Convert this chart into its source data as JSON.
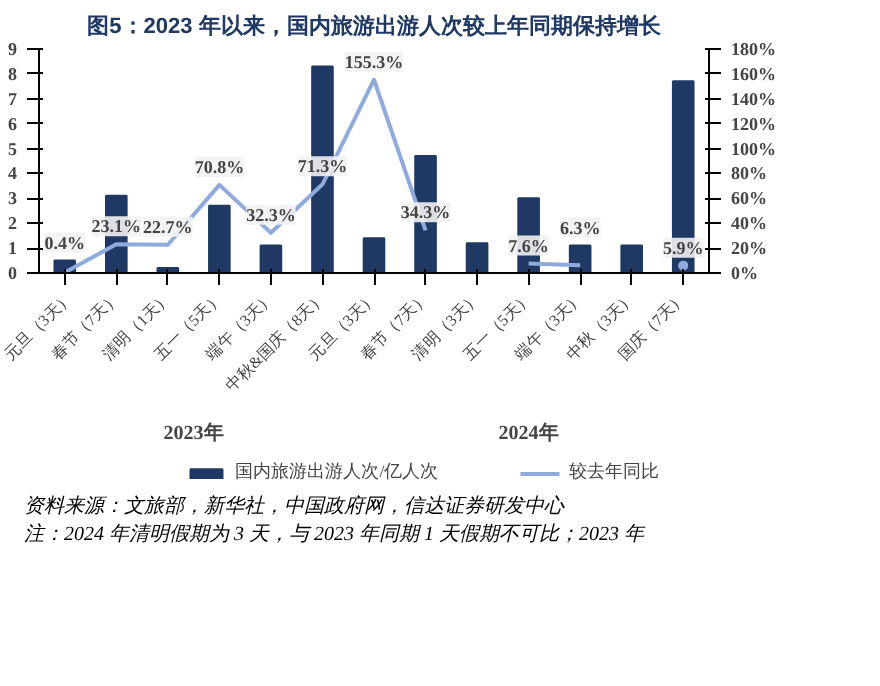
{
  "chart_data": {
    "type": "bar",
    "title": "图5：2023 年以来，国内旅游出游人次较上年同期保持增长",
    "categories": [
      "元旦（3天）",
      "春节（7天）",
      "清明（1天）",
      "五一（5天）",
      "端午（3天）",
      "中秋&国庆（8天）",
      "元旦（3天）",
      "春节（7天）",
      "清明（3天）",
      "五一（5天）",
      "端午（3天）",
      "中秋（3天）",
      "国庆（7天）"
    ],
    "series": [
      {
        "name": "国内旅游出游人次/亿人次",
        "color": "#1f3864",
        "values": [
          0.5,
          3.1,
          0.2,
          2.7,
          1.1,
          8.3,
          1.4,
          4.7,
          1.2,
          3.0,
          1.1,
          1.1,
          7.7
        ]
      },
      {
        "name": "较去年同比",
        "type": "line",
        "axis": "y2",
        "color": "#8faadc",
        "values": [
          0.4,
          23.1,
          22.7,
          70.8,
          32.3,
          71.3,
          155.3,
          34.3,
          null,
          7.6,
          6.3,
          null,
          5.9
        ],
        "value_labels": [
          "0.4%",
          "23.1%",
          "22.7%",
          "70.8%",
          "32.3%",
          "71.3%",
          "155.3%",
          "34.3%",
          null,
          "7.6%",
          "6.3%",
          null,
          "5.9%"
        ]
      }
    ],
    "ylim": [
      0,
      9
    ],
    "yticks": [
      0,
      1,
      2,
      3,
      4,
      5,
      6,
      7,
      8,
      9
    ],
    "y2lim": [
      0,
      180
    ],
    "y2ticks": [
      {
        "value": 0,
        "label": "0%"
      },
      {
        "value": 20,
        "label": "20%"
      },
      {
        "value": 40,
        "label": "40%"
      },
      {
        "value": 60,
        "label": "60%"
      },
      {
        "value": 80,
        "label": "80%"
      },
      {
        "value": 100,
        "label": "100%"
      },
      {
        "value": 120,
        "label": "120%"
      },
      {
        "value": 140,
        "label": "140%"
      },
      {
        "value": 160,
        "label": "160%"
      },
      {
        "value": 180,
        "label": "180%"
      }
    ],
    "legend": "bottom",
    "grid": false,
    "marker": "none",
    "annotations": [
      "2023年",
      "2024年",
      "资料来源：文旅部，新华社，中国政府网，信达证券研发中心",
      "注：2024 年清明假期为 3 天，与 2023 年同期 1 天假期不可比；2023 年"
    ]
  }
}
